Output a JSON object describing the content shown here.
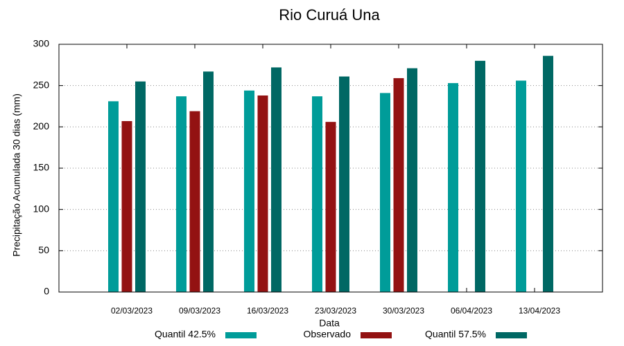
{
  "chart_data": {
    "type": "bar",
    "title": "Rio Curuá Una",
    "x_label": "Data",
    "y_label": "Precipitação Acumulada 30 dias (mm)",
    "categories": [
      "02/03/2023",
      "09/03/2023",
      "16/03/2023",
      "23/03/2023",
      "30/03/2023",
      "06/04/2023",
      "13/04/2023"
    ],
    "series": [
      {
        "name": "Quantil 42.5%",
        "color": "#009c99",
        "values": [
          231,
          237,
          244,
          237,
          241,
          253,
          256
        ]
      },
      {
        "name": "Observado",
        "color": "#931212",
        "values": [
          207,
          219,
          238,
          206,
          259,
          null,
          null
        ]
      },
      {
        "name": "Quantil 57.5%",
        "color": "#006864",
        "values": [
          255,
          267,
          272,
          261,
          271,
          280,
          286
        ]
      }
    ],
    "ylim": [
      0,
      300
    ],
    "yticks": [
      0,
      50,
      100,
      150,
      200,
      250,
      300
    ],
    "grid": true,
    "legend": "bottom"
  }
}
